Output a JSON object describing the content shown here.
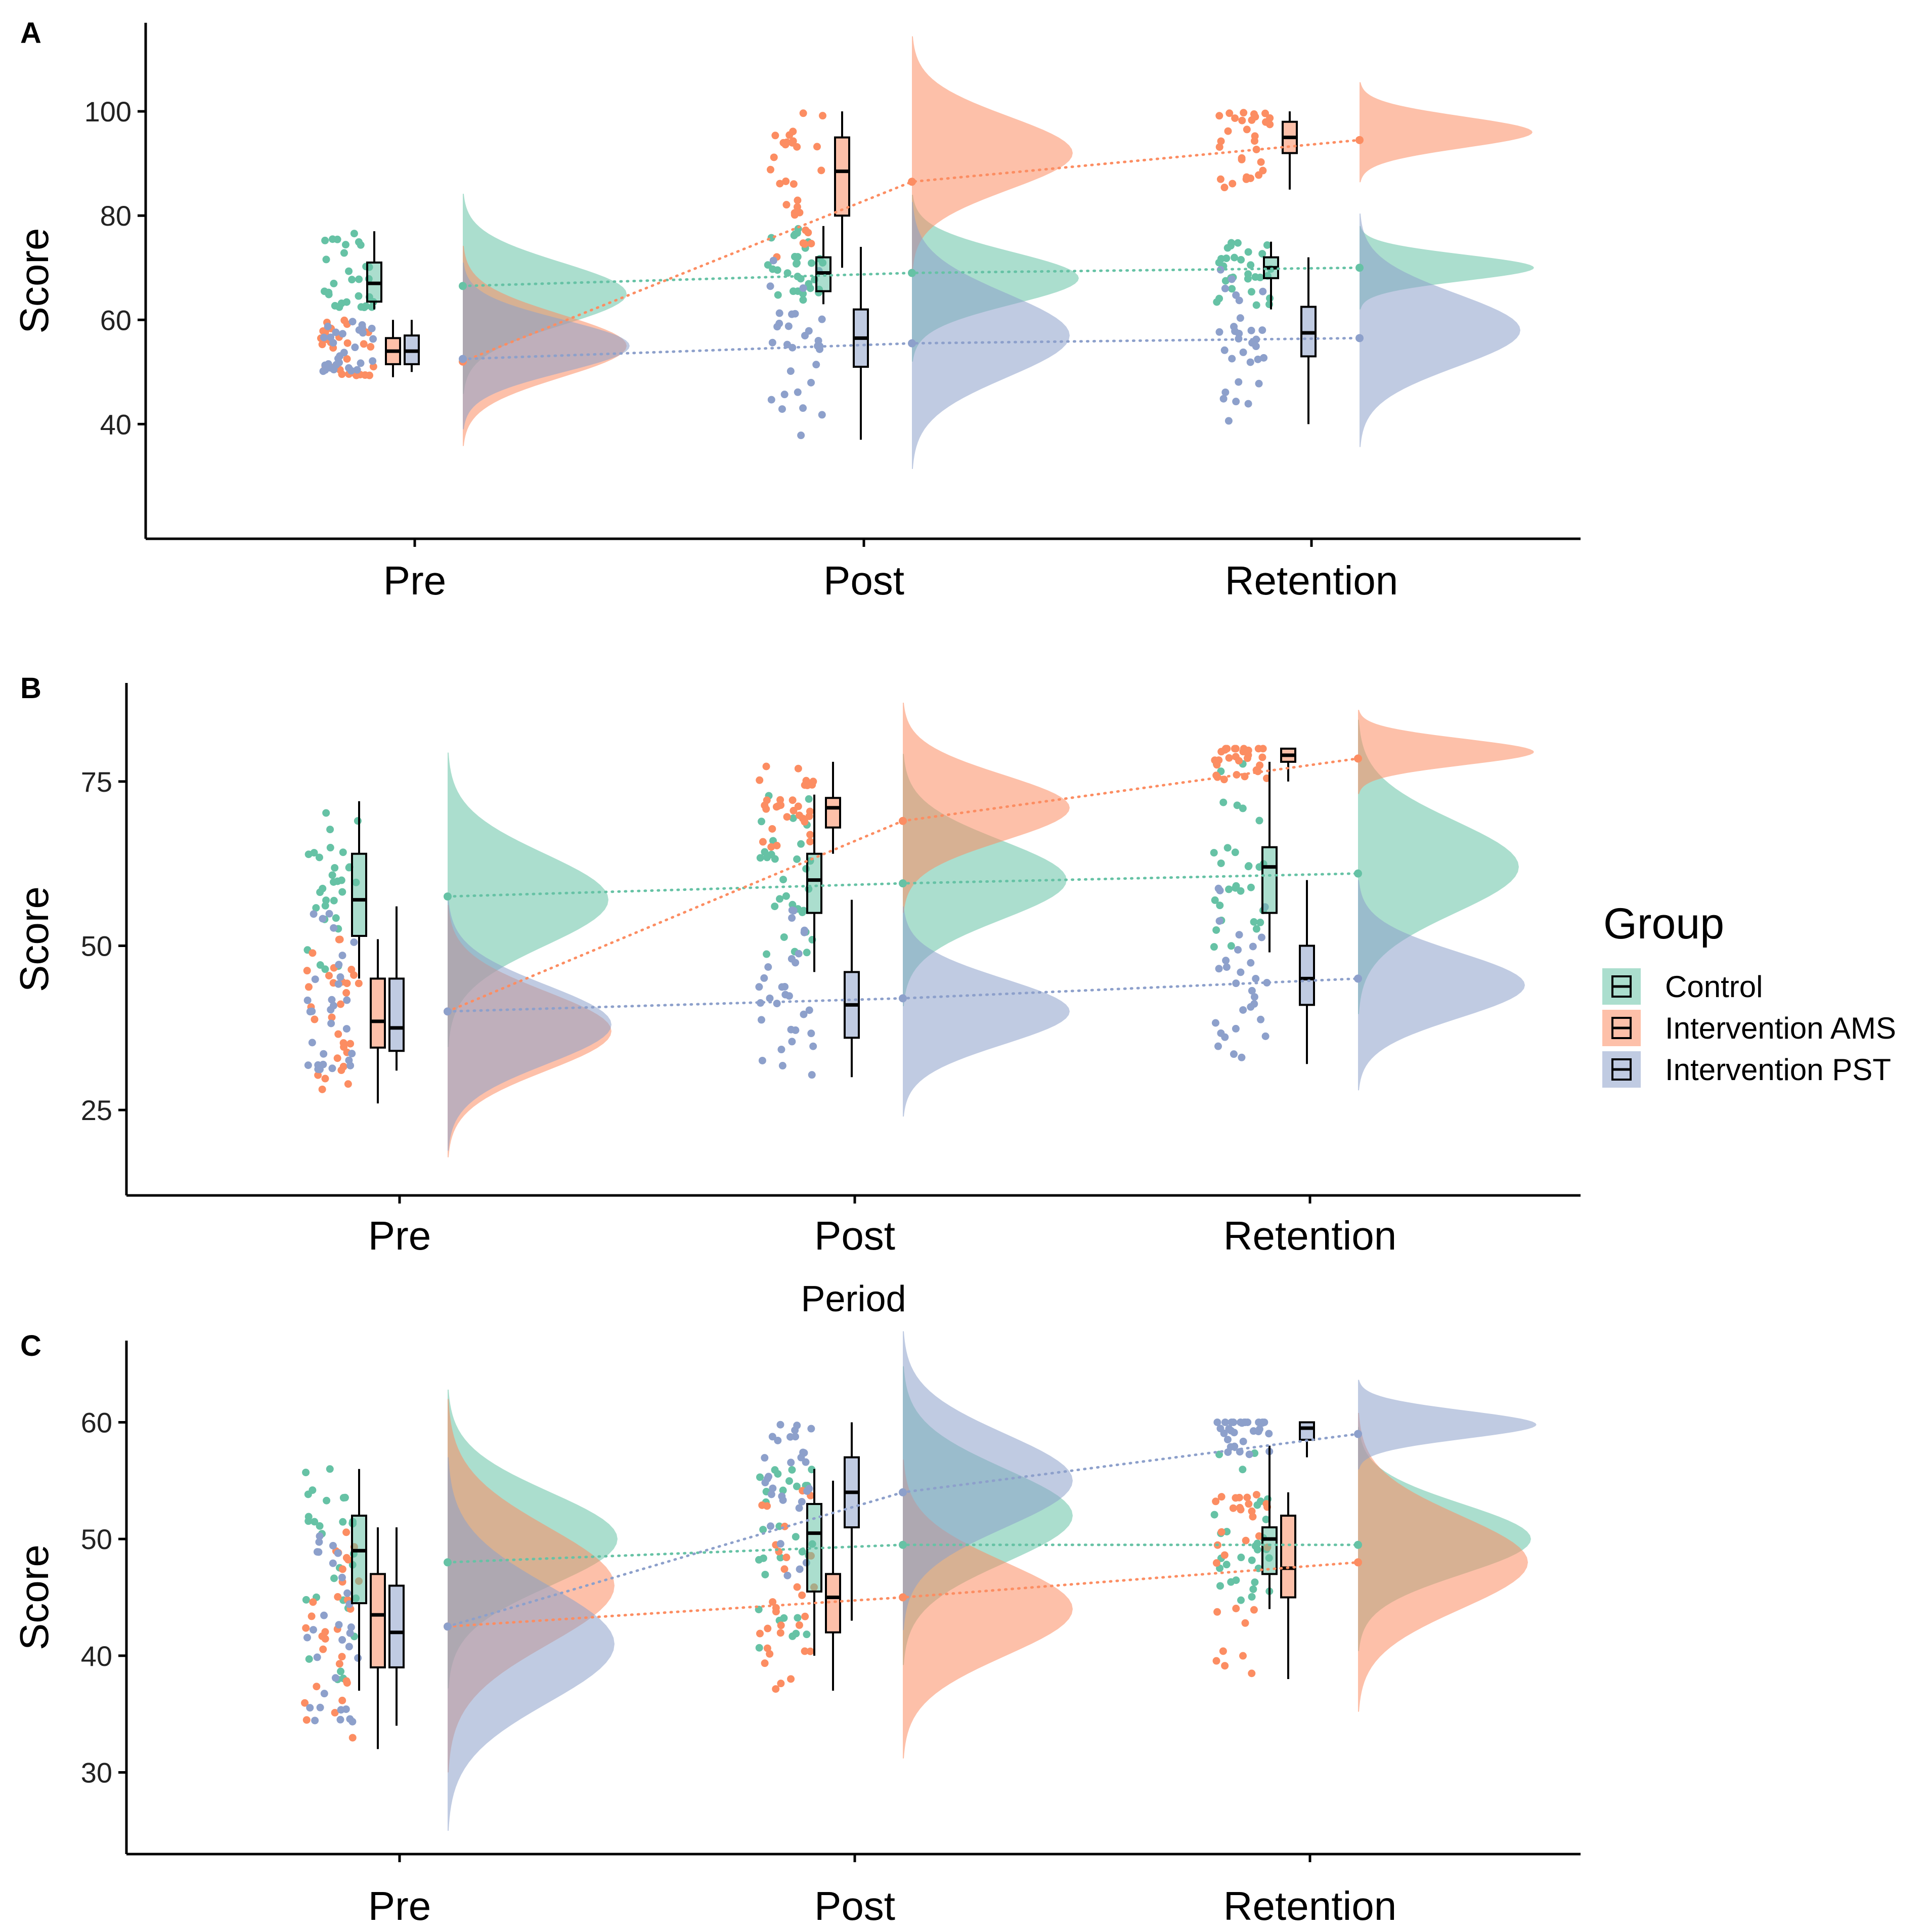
{
  "colors": {
    "Control": "#66c2a5",
    "Intervention AMS": "#fc8d62",
    "Intervention PST": "#8da0cb",
    "axis": "#000000"
  },
  "legend": {
    "title": "Group",
    "items": [
      "Control",
      "Intervention AMS",
      "Intervention PST"
    ]
  },
  "chart_data": [
    {
      "panel": "A",
      "type": "raincloud",
      "xlabel": "",
      "ylabel": "Score",
      "categories": [
        "Pre",
        "Post",
        "Retention"
      ],
      "yticks": [
        40,
        60,
        80,
        100
      ],
      "ylim": [
        18,
        117
      ],
      "series": [
        {
          "name": "Control",
          "means": [
            66.5,
            69,
            70
          ],
          "box": [
            {
              "min": 62,
              "q1": 63.5,
              "median": 67,
              "q3": 71,
              "max": 77
            },
            {
              "min": 63,
              "q1": 65.5,
              "median": 69,
              "q3": 72,
              "max": 78
            },
            {
              "min": 62,
              "q1": 68,
              "median": 70,
              "q3": 72,
              "max": 75
            }
          ],
          "density": [
            {
              "mode": 65,
              "sd": 6,
              "height": 1
            },
            {
              "mode": 68,
              "sd": 5,
              "height": 1
            },
            {
              "mode": 70,
              "sd": 2.5,
              "height": 1
            }
          ]
        },
        {
          "name": "Intervention AMS",
          "means": [
            52,
            86.5,
            94.5
          ],
          "box": [
            {
              "min": 49,
              "q1": 51.5,
              "median": 54,
              "q3": 56.5,
              "max": 60
            },
            {
              "min": 70,
              "q1": 80,
              "median": 88.5,
              "q3": 95,
              "max": 100
            },
            {
              "min": 85,
              "q1": 92,
              "median": 95,
              "q3": 98,
              "max": 100
            }
          ],
          "density": [
            {
              "mode": 55,
              "sd": 6,
              "height": 1
            },
            {
              "mode": 92,
              "sd": 7,
              "height": 1
            },
            {
              "mode": 96,
              "sd": 3,
              "height": 1
            }
          ]
        },
        {
          "name": "Intervention PST",
          "means": [
            52.5,
            55.5,
            56.5
          ],
          "box": [
            {
              "min": 50,
              "q1": 51.5,
              "median": 54,
              "q3": 57,
              "max": 60
            },
            {
              "min": 37,
              "q1": 51,
              "median": 56.5,
              "q3": 62,
              "max": 74
            },
            {
              "min": 40,
              "q1": 53,
              "median": 57.5,
              "q3": 62.5,
              "max": 72
            }
          ],
          "density": [
            {
              "mode": 55,
              "sd": 5,
              "height": 1
            },
            {
              "mode": 57,
              "sd": 8,
              "height": 1
            },
            {
              "mode": 58,
              "sd": 7,
              "height": 1
            }
          ]
        }
      ]
    },
    {
      "panel": "B",
      "type": "raincloud",
      "xlabel": "Period",
      "ylabel": "Score",
      "categories": [
        "Pre",
        "Post",
        "Retention"
      ],
      "yticks": [
        25,
        50,
        75
      ],
      "ylim": [
        12,
        90
      ],
      "series": [
        {
          "name": "Control",
          "means": [
            57.5,
            59.5,
            61
          ],
          "box": [
            {
              "min": 45,
              "q1": 51.5,
              "median": 57,
              "q3": 64,
              "max": 72
            },
            {
              "min": 46,
              "q1": 55,
              "median": 60,
              "q3": 64,
              "max": 73
            },
            {
              "min": 49,
              "q1": 55,
              "median": 62,
              "q3": 65,
              "max": 78
            }
          ],
          "density": [
            {
              "mode": 57,
              "sd": 7,
              "height": 1
            },
            {
              "mode": 60,
              "sd": 6,
              "height": 1
            },
            {
              "mode": 62,
              "sd": 7,
              "height": 1
            }
          ]
        },
        {
          "name": "Intervention AMS",
          "means": [
            40,
            69,
            78.5
          ],
          "box": [
            {
              "min": 26,
              "q1": 34.5,
              "median": 38.5,
              "q3": 45,
              "max": 51
            },
            {
              "min": 64,
              "q1": 68,
              "median": 71,
              "q3": 72.5,
              "max": 78
            },
            {
              "min": 75,
              "q1": 78,
              "median": 79,
              "q3": 80,
              "max": 80
            }
          ],
          "density": [
            {
              "mode": 37,
              "sd": 6,
              "height": 1
            },
            {
              "mode": 71,
              "sd": 5,
              "height": 1
            },
            {
              "mode": 79.5,
              "sd": 2,
              "height": 1
            }
          ]
        },
        {
          "name": "Intervention PST",
          "means": [
            40,
            42,
            45
          ],
          "box": [
            {
              "min": 31,
              "q1": 34,
              "median": 37.5,
              "q3": 45,
              "max": 56
            },
            {
              "min": 30,
              "q1": 36,
              "median": 41,
              "q3": 46,
              "max": 57
            },
            {
              "min": 32,
              "q1": 41,
              "median": 45,
              "q3": 50,
              "max": 60
            }
          ],
          "density": [
            {
              "mode": 38,
              "sd": 6,
              "height": 1
            },
            {
              "mode": 40,
              "sd": 5,
              "height": 1
            },
            {
              "mode": 44,
              "sd": 5,
              "height": 1
            }
          ]
        }
      ]
    },
    {
      "panel": "C",
      "type": "raincloud",
      "xlabel": "",
      "ylabel": "Score",
      "categories": [
        "Pre",
        "Post",
        "Retention"
      ],
      "yticks": [
        30,
        40,
        50,
        60
      ],
      "ylim": [
        23,
        67
      ],
      "series": [
        {
          "name": "Control",
          "means": [
            48,
            49.5,
            49.5
          ],
          "box": [
            {
              "min": 37,
              "q1": 44.5,
              "median": 49,
              "q3": 52,
              "max": 56
            },
            {
              "min": 40,
              "q1": 45.5,
              "median": 50.5,
              "q3": 53,
              "max": 56
            },
            {
              "min": 44,
              "q1": 47,
              "median": 50,
              "q3": 51,
              "max": 58
            }
          ],
          "density": [
            {
              "mode": 50,
              "sd": 4,
              "height": 1
            },
            {
              "mode": 52,
              "sd": 4,
              "height": 1
            },
            {
              "mode": 50,
              "sd": 3,
              "height": 1
            }
          ]
        },
        {
          "name": "Intervention AMS",
          "means": [
            42.5,
            45,
            48
          ],
          "box": [
            {
              "min": 32,
              "q1": 39,
              "median": 43.5,
              "q3": 47,
              "max": 51
            },
            {
              "min": 37,
              "q1": 42,
              "median": 45,
              "q3": 47,
              "max": 55
            },
            {
              "min": 38,
              "q1": 45,
              "median": 47.5,
              "q3": 52,
              "max": 54
            }
          ],
          "density": [
            {
              "mode": 46,
              "sd": 5,
              "height": 1
            },
            {
              "mode": 44,
              "sd": 4,
              "height": 1
            },
            {
              "mode": 48,
              "sd": 4,
              "height": 1
            }
          ]
        },
        {
          "name": "Intervention PST",
          "means": [
            42.5,
            54,
            59
          ],
          "box": [
            {
              "min": 34,
              "q1": 39,
              "median": 42,
              "q3": 46,
              "max": 51
            },
            {
              "min": 43,
              "q1": 51,
              "median": 54,
              "q3": 57,
              "max": 60
            },
            {
              "min": 57,
              "q1": 58.5,
              "median": 59.5,
              "q3": 60,
              "max": 60
            }
          ],
          "density": [
            {
              "mode": 41,
              "sd": 5,
              "height": 1
            },
            {
              "mode": 55,
              "sd": 4,
              "height": 1
            },
            {
              "mode": 59.8,
              "sd": 1.2,
              "height": 1
            }
          ]
        }
      ]
    }
  ]
}
